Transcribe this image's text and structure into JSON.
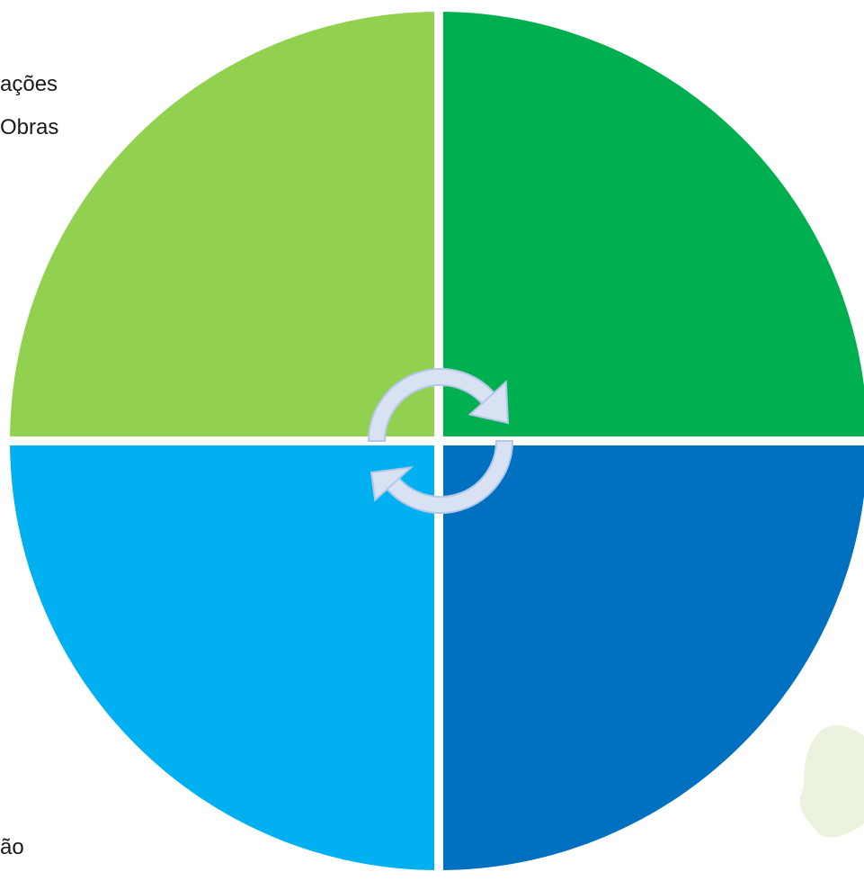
{
  "diagram": {
    "quadrants": [
      {
        "name": "top-left",
        "color": "#92D050"
      },
      {
        "name": "top-right",
        "color": "#00B050"
      },
      {
        "name": "bottom-left",
        "color": "#00B0F0"
      },
      {
        "name": "bottom-right",
        "color": "#0070C0"
      }
    ],
    "divider_color": "#FFFFFF",
    "cycle_arrow_color": "#D9E2F3",
    "cycle_arrow_outline": "#B4C7E7",
    "watermark_color": "#E3ECCF"
  },
  "text_fragments": {
    "frag_1": "ações",
    "frag_2": "Obras",
    "frag_3": "ão"
  }
}
